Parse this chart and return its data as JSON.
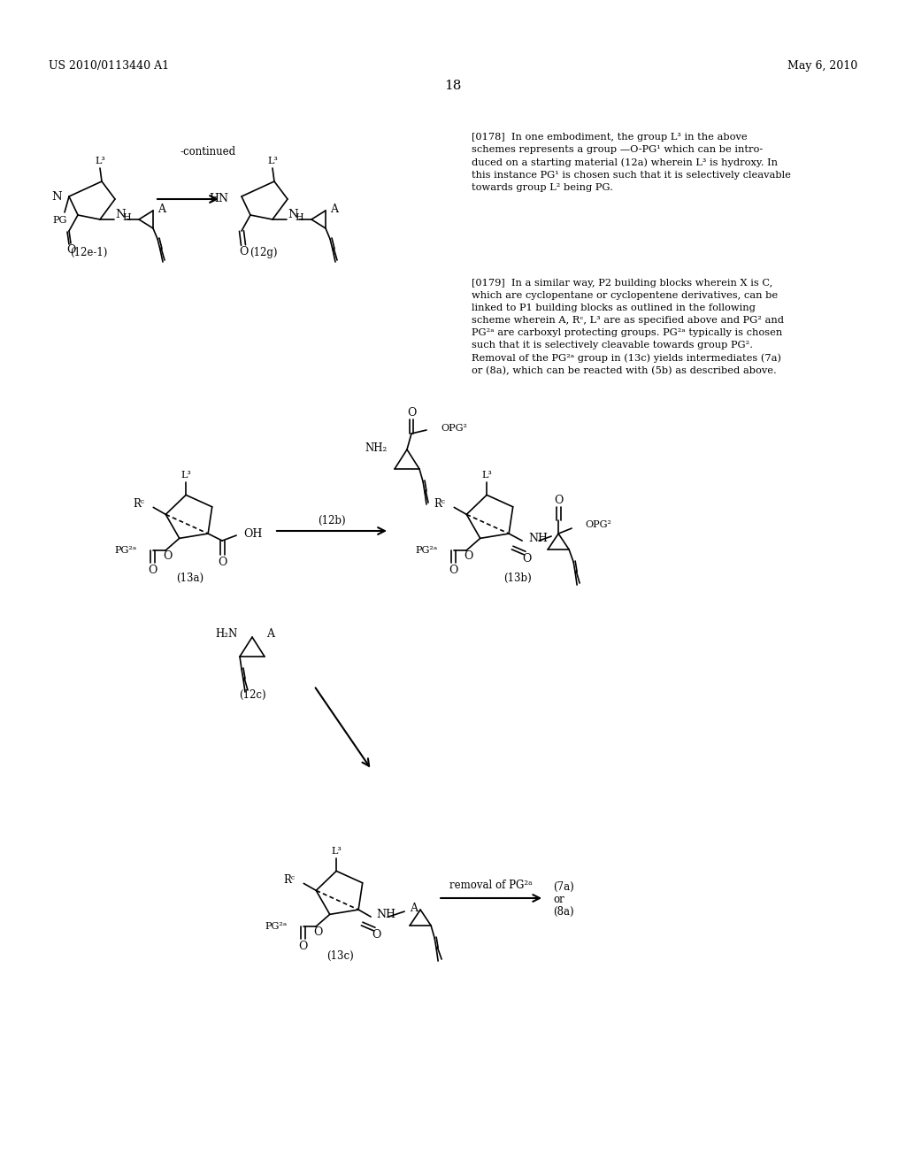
{
  "background_color": "#ffffff",
  "header_left": "US 2010/0113440 A1",
  "header_right": "May 6, 2010",
  "page_number": "18",
  "p0178": "[0178]  In one embodiment, the group L³ in the above\nschemes represents a group —O-PG¹ which can be intro-\nduced on a starting material (12a) wherein L³ is hydroxy. In\nthis instance PG¹ is chosen such that it is selectively cleavable\ntowards group L² being PG.",
  "p0179": "[0179]  In a similar way, P2 building blocks wherein X is C,\nwhich are cyclopentane or cyclopentene derivatives, can be\nlinked to P1 building blocks as outlined in the following\nscheme wherein A, Rᶜ, L³ are as specified above and PG² and\nPG²ᵃ are carboxyl protecting groups. PG²ᵃ typically is chosen\nsuch that it is selectively cleavable towards group PG².\nRemoval of the PG²ᵃ group in (13c) yields intermediates (7a)\nor (8a), which can be reacted with (5b) as described above."
}
